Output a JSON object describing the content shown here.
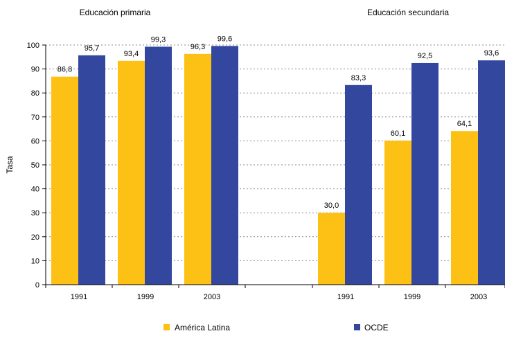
{
  "chart_data": {
    "type": "bar",
    "ylabel": "Tasa",
    "xlabel": "",
    "ylim": [
      0,
      100
    ],
    "yticks": [
      0,
      10,
      20,
      30,
      40,
      50,
      60,
      70,
      80,
      90,
      100
    ],
    "grid": true,
    "legend_position": "bottom",
    "groups": [
      {
        "title": "Educación primaria",
        "categories": [
          "1991",
          "1999",
          "2003"
        ],
        "series": [
          {
            "name": "América Latina",
            "values": [
              86.8,
              93.4,
              96.3
            ],
            "labels": [
              "86,8",
              "93,4",
              "96,3"
            ]
          },
          {
            "name": "OCDE",
            "values": [
              95.7,
              99.3,
              99.6
            ],
            "labels": [
              "95,7",
              "99,3",
              "99,6"
            ]
          }
        ]
      },
      {
        "title": "Educación secundaria",
        "categories": [
          "1991",
          "1999",
          "2003"
        ],
        "series": [
          {
            "name": "América Latina",
            "values": [
              30.0,
              60.1,
              64.1
            ],
            "labels": [
              "30,0",
              "60,1",
              "64,1"
            ]
          },
          {
            "name": "OCDE",
            "values": [
              83.3,
              92.5,
              93.6
            ],
            "labels": [
              "83,3",
              "92,5",
              "93,6"
            ]
          }
        ]
      }
    ],
    "legend": [
      {
        "name": "América Latina",
        "color": "#FDC014"
      },
      {
        "name": "OCDE",
        "color": "#33479E"
      }
    ]
  }
}
